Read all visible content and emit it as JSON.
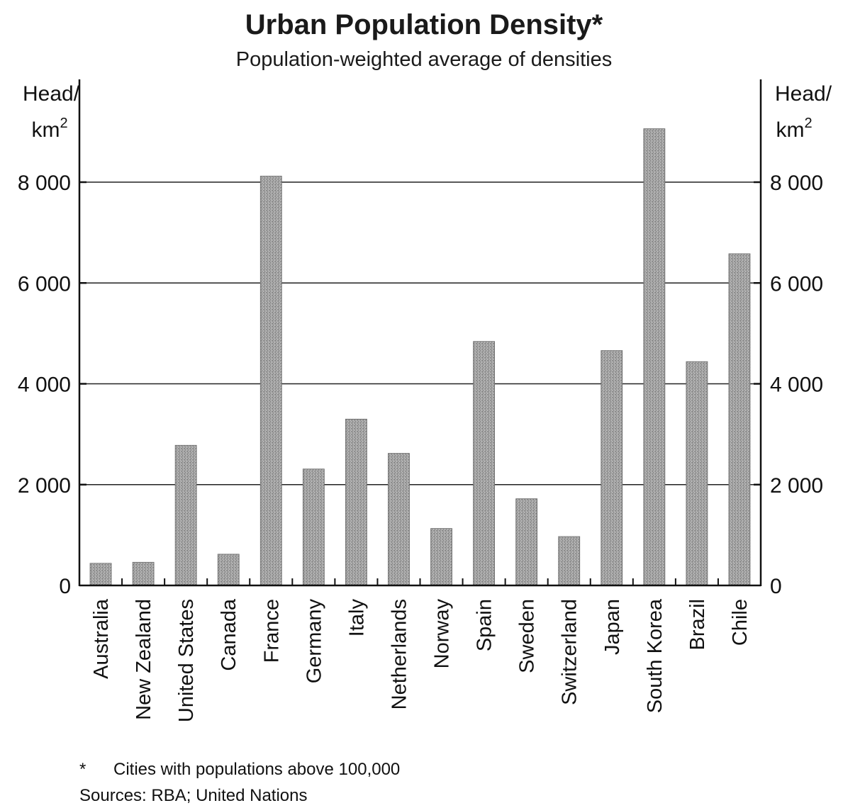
{
  "chart_data": {
    "type": "bar",
    "title": "Urban Population Density*",
    "subtitle": "Population-weighted average of densities",
    "ylabel_left": [
      "Head/",
      "km"
    ],
    "ylabel_right": [
      "Head/",
      "km"
    ],
    "ylabel_superscript": "2",
    "ylim": [
      0,
      9000
    ],
    "yticks": [
      0,
      2000,
      4000,
      6000,
      8000
    ],
    "ytick_labels": [
      "0",
      "2 000",
      "4 000",
      "6 000",
      "8 000"
    ],
    "grid": true,
    "bar_color": "#9a9a9a",
    "categories": [
      "Australia",
      "New Zealand",
      "United States",
      "Canada",
      "France",
      "Germany",
      "Italy",
      "Netherlands",
      "Norway",
      "Spain",
      "Sweden",
      "Switzerland",
      "Japan",
      "South Korea",
      "Brazil",
      "Chile"
    ],
    "values": [
      440,
      460,
      2780,
      620,
      8120,
      2310,
      3300,
      2620,
      1130,
      4840,
      1720,
      970,
      4660,
      9060,
      4440,
      6580
    ]
  },
  "footnote": {
    "marker": "*",
    "text": "Cities with populations above 100,000",
    "sources": "Sources: RBA; United Nations"
  }
}
